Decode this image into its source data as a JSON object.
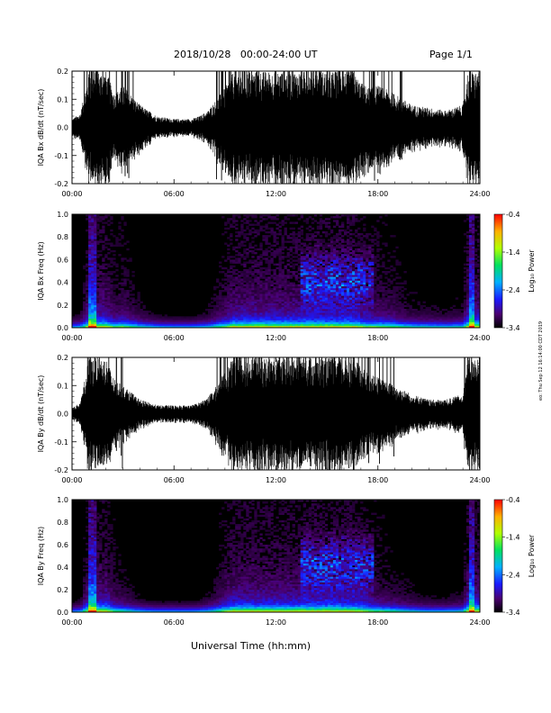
{
  "header": {
    "title": "2018/10/28   00:00-24:00 UT",
    "page": "Page 1/1"
  },
  "footer": {
    "xlabel": "Universal Time (hh:mm)",
    "stamp": "eo: Thu Sep 12 16:14:00 CDT 2019"
  },
  "chart_data": [
    {
      "type": "line",
      "ylabel": "IQA Bx dB/dt (nT/sec)",
      "xticks": [
        "00:00",
        "06:00",
        "12:00",
        "18:00",
        "24:00"
      ],
      "xlim_hours": [
        0,
        24
      ],
      "ylim": [
        -0.2,
        0.2
      ],
      "yticks": [
        "-0.2",
        "-0.1",
        "0.0",
        "0.1",
        "0.2"
      ],
      "envelope": {
        "hours": [
          0,
          0.5,
          1,
          1.2,
          2,
          2.5,
          3,
          4,
          5,
          6,
          7,
          7.5,
          8,
          8.5,
          9,
          9.5,
          10,
          11,
          12,
          13,
          14,
          15,
          16,
          16.5,
          17,
          17.5,
          18,
          19,
          20,
          21,
          22,
          23,
          23.3,
          24
        ],
        "amp": [
          0.03,
          0.05,
          0.2,
          0.2,
          0.2,
          0.12,
          0.15,
          0.08,
          0.04,
          0.03,
          0.03,
          0.04,
          0.06,
          0.1,
          0.14,
          0.2,
          0.2,
          0.2,
          0.2,
          0.2,
          0.2,
          0.2,
          0.2,
          0.2,
          0.16,
          0.14,
          0.15,
          0.12,
          0.08,
          0.07,
          0.06,
          0.08,
          0.2,
          0.2
        ]
      }
    },
    {
      "type": "heatmap",
      "ylabel": "IQA Bx Freq (Hz)",
      "xticks": [
        "00:00",
        "06:00",
        "12:00",
        "18:00",
        "24:00"
      ],
      "ylim": [
        0.0,
        1.0
      ],
      "yticks": [
        "0.0",
        "0.2",
        "0.4",
        "0.6",
        "0.8",
        "1.0"
      ],
      "colorbar": {
        "label": "Log₁₀ Power",
        "range": [
          -3.4,
          -0.4
        ],
        "ticks": [
          "-0.4",
          "-1.4",
          "-2.4",
          "-3.4"
        ]
      }
    },
    {
      "type": "line",
      "ylabel": "IQA By dB/dt (nT/sec)",
      "xticks": [
        "00:00",
        "06:00",
        "12:00",
        "18:00",
        "24:00"
      ],
      "xlim_hours": [
        0,
        24
      ],
      "ylim": [
        -0.2,
        0.2
      ],
      "yticks": [
        "-0.2",
        "-0.1",
        "0.0",
        "0.1",
        "0.2"
      ],
      "envelope": {
        "hours": [
          0,
          0.5,
          1,
          1.2,
          2,
          2.5,
          3,
          4,
          5,
          6,
          7,
          7.5,
          8,
          8.5,
          9,
          9.5,
          10,
          11,
          12,
          13,
          14,
          15,
          16,
          16.5,
          17,
          17.5,
          18,
          19,
          20,
          21,
          22,
          23,
          23.3,
          24
        ],
        "amp": [
          0.02,
          0.04,
          0.2,
          0.2,
          0.2,
          0.12,
          0.1,
          0.05,
          0.03,
          0.03,
          0.03,
          0.04,
          0.06,
          0.1,
          0.15,
          0.2,
          0.2,
          0.2,
          0.2,
          0.2,
          0.2,
          0.2,
          0.2,
          0.2,
          0.17,
          0.14,
          0.13,
          0.1,
          0.07,
          0.05,
          0.05,
          0.07,
          0.2,
          0.2
        ]
      }
    },
    {
      "type": "heatmap",
      "ylabel": "IQA By Freq (Hz)",
      "xticks": [
        "00:00",
        "06:00",
        "12:00",
        "18:00",
        "24:00"
      ],
      "ylim": [
        0.0,
        1.0
      ],
      "yticks": [
        "0.0",
        "0.2",
        "0.4",
        "0.6",
        "0.8",
        "1.0"
      ],
      "colorbar": {
        "label": "Log₁₀ Power",
        "range": [
          -3.4,
          -0.4
        ],
        "ticks": [
          "-0.4",
          "-1.4",
          "-2.4",
          "-3.4"
        ]
      }
    }
  ]
}
